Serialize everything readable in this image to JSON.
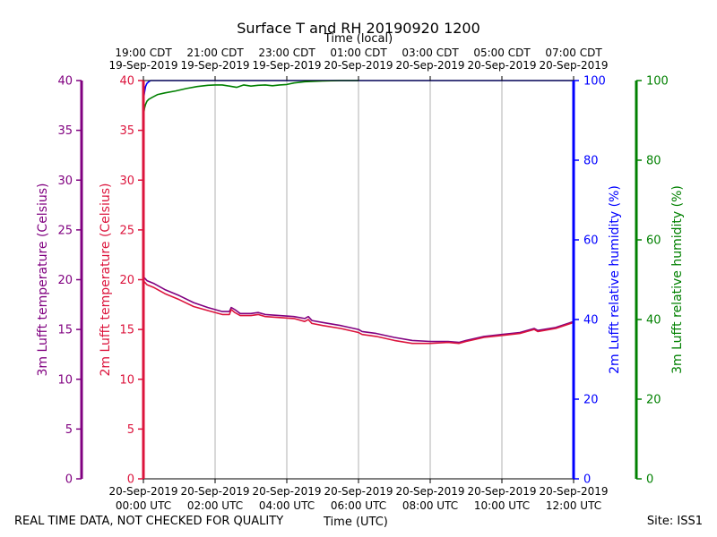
{
  "footer": {
    "quality_note": "REAL TIME DATA, NOT CHECKED FOR QUALITY",
    "site": "Site: ISS1"
  },
  "chart_data": {
    "type": "line",
    "title": "Surface T and RH 20190920 1200",
    "top_axis_label": "Time (local)",
    "bottom_axis_label": "Time (UTC)",
    "x_range_hours": [
      0,
      12
    ],
    "bottom_ticks": [
      {
        "hour": 0,
        "line1": "20-Sep-2019",
        "line2": "00:00 UTC"
      },
      {
        "hour": 2,
        "line1": "20-Sep-2019",
        "line2": "02:00 UTC"
      },
      {
        "hour": 4,
        "line1": "20-Sep-2019",
        "line2": "04:00 UTC"
      },
      {
        "hour": 6,
        "line1": "20-Sep-2019",
        "line2": "06:00 UTC"
      },
      {
        "hour": 8,
        "line1": "20-Sep-2019",
        "line2": "08:00 UTC"
      },
      {
        "hour": 10,
        "line1": "20-Sep-2019",
        "line2": "10:00 UTC"
      },
      {
        "hour": 12,
        "line1": "20-Sep-2019",
        "line2": "12:00 UTC"
      }
    ],
    "top_ticks": [
      {
        "hour": 0,
        "line1": "19:00 CDT",
        "line2": "19-Sep-2019"
      },
      {
        "hour": 2,
        "line1": "21:00 CDT",
        "line2": "19-Sep-2019"
      },
      {
        "hour": 4,
        "line1": "23:00 CDT",
        "line2": "19-Sep-2019"
      },
      {
        "hour": 6,
        "line1": "01:00 CDT",
        "line2": "20-Sep-2019"
      },
      {
        "hour": 8,
        "line1": "03:00 CDT",
        "line2": "20-Sep-2019"
      },
      {
        "hour": 10,
        "line1": "05:00 CDT",
        "line2": "20-Sep-2019"
      },
      {
        "hour": 12,
        "line1": "07:00 CDT",
        "line2": "20-Sep-2019"
      }
    ],
    "axes": [
      {
        "id": "t3m",
        "label": "3m Lufft temperature (Celsius)",
        "color": "#800080",
        "range": [
          0,
          40
        ],
        "ticks": [
          0,
          5,
          10,
          15,
          20,
          25,
          30,
          35,
          40
        ]
      },
      {
        "id": "t2m",
        "label": "2m Lufft temperature (Celsius)",
        "color": "#dc143c",
        "range": [
          0,
          40
        ],
        "ticks": [
          0,
          5,
          10,
          15,
          20,
          25,
          30,
          35,
          40
        ]
      },
      {
        "id": "rh2m",
        "label": "2m Lufft relative humidity (%)",
        "color": "#0000ff",
        "range": [
          0,
          100
        ],
        "ticks": [
          0,
          20,
          40,
          60,
          80,
          100
        ]
      },
      {
        "id": "rh3m",
        "label": "3m Lufft relative humidity (%)",
        "color": "#008000",
        "range": [
          0,
          100
        ],
        "ticks": [
          0,
          20,
          40,
          60,
          80,
          100
        ]
      }
    ],
    "grid": true,
    "series": [
      {
        "name": "3m Lufft temperature",
        "axis": "t3m",
        "color": "#800080",
        "x": [
          0,
          0.1,
          0.3,
          0.6,
          1.0,
          1.4,
          1.8,
          2.2,
          2.4,
          2.45,
          2.55,
          2.7,
          3.0,
          3.2,
          3.4,
          3.8,
          4.2,
          4.5,
          4.6,
          4.7,
          5.0,
          5.5,
          6.0,
          6.1,
          6.5,
          7.0,
          7.5,
          8.0,
          8.5,
          8.8,
          9.0,
          9.5,
          10.0,
          10.5,
          10.9,
          11.0,
          11.5,
          12.0
        ],
        "values": [
          20.3,
          19.9,
          19.6,
          19.0,
          18.4,
          17.7,
          17.2,
          16.8,
          16.8,
          17.2,
          17.0,
          16.6,
          16.6,
          16.7,
          16.5,
          16.4,
          16.3,
          16.1,
          16.3,
          15.9,
          15.7,
          15.4,
          15.0,
          14.8,
          14.6,
          14.2,
          13.9,
          13.8,
          13.8,
          13.7,
          13.9,
          14.3,
          14.5,
          14.7,
          15.1,
          14.9,
          15.2,
          15.8
        ]
      },
      {
        "name": "2m Lufft temperature",
        "axis": "t2m",
        "color": "#dc143c",
        "x": [
          0,
          0.1,
          0.3,
          0.6,
          1.0,
          1.4,
          1.8,
          2.2,
          2.4,
          2.45,
          2.55,
          2.7,
          3.0,
          3.2,
          3.4,
          3.8,
          4.2,
          4.5,
          4.6,
          4.7,
          5.0,
          5.5,
          6.0,
          6.1,
          6.5,
          7.0,
          7.5,
          8.0,
          8.5,
          8.8,
          9.0,
          9.5,
          10.0,
          10.5,
          10.9,
          11.0,
          11.5,
          12.0
        ],
        "values": [
          19.9,
          19.5,
          19.2,
          18.6,
          18.0,
          17.3,
          16.9,
          16.5,
          16.5,
          17.0,
          16.7,
          16.4,
          16.4,
          16.5,
          16.3,
          16.2,
          16.1,
          15.8,
          16.0,
          15.6,
          15.4,
          15.1,
          14.7,
          14.5,
          14.3,
          13.9,
          13.6,
          13.6,
          13.7,
          13.6,
          13.8,
          14.2,
          14.4,
          14.6,
          15.0,
          14.8,
          15.1,
          15.7
        ]
      },
      {
        "name": "2m Lufft relative humidity",
        "axis": "rh2m",
        "color": "#0000ff",
        "x": [
          0,
          0.03,
          0.06,
          0.1,
          0.15,
          0.2,
          0.3,
          0.5,
          1.0,
          2.0,
          4.0,
          6.0,
          8.0,
          10.0,
          12.0
        ],
        "values": [
          95,
          97,
          98.5,
          99.3,
          99.7,
          100,
          100,
          100,
          100,
          100,
          100,
          100,
          100,
          100,
          100
        ]
      },
      {
        "name": "3m Lufft relative humidity",
        "axis": "rh3m",
        "color": "#008000",
        "x": [
          0,
          0.03,
          0.06,
          0.1,
          0.15,
          0.25,
          0.4,
          0.6,
          0.9,
          1.2,
          1.5,
          1.8,
          2.0,
          2.2,
          2.4,
          2.6,
          2.8,
          3.0,
          3.2,
          3.4,
          3.6,
          3.8,
          4.0,
          4.2,
          4.5,
          5.0,
          5.5,
          6.0
        ],
        "values": [
          91,
          93,
          94,
          94.8,
          95.3,
          95.8,
          96.5,
          96.9,
          97.4,
          98.0,
          98.5,
          98.8,
          98.9,
          98.9,
          98.6,
          98.3,
          98.9,
          98.6,
          98.8,
          98.9,
          98.7,
          98.9,
          99.0,
          99.4,
          99.7,
          99.9,
          100,
          100
        ]
      }
    ]
  }
}
